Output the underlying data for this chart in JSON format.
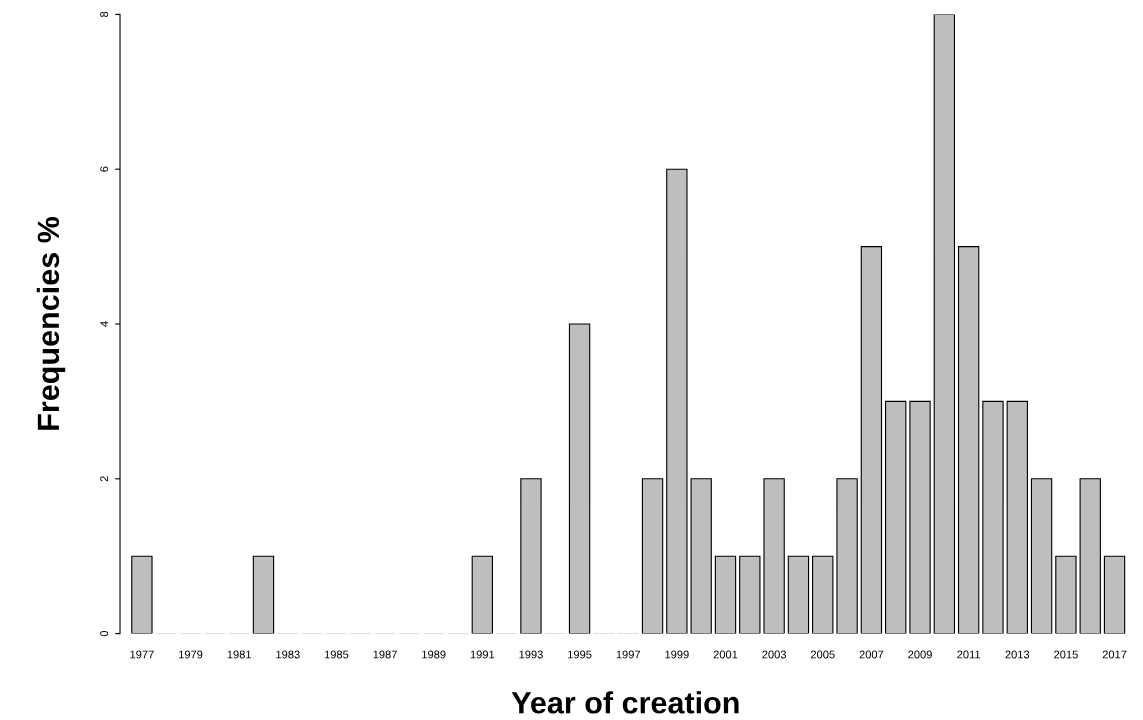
{
  "chart_data": {
    "type": "bar",
    "xlabel": "Year of creation",
    "ylabel": "Frequencies %",
    "categories": [
      "1977",
      null,
      "1979",
      null,
      "1981",
      null,
      "1983",
      null,
      "1985",
      null,
      "1987",
      null,
      "1989",
      null,
      "1991",
      null,
      "1993",
      null,
      "1995",
      null,
      "1997",
      null,
      "1999",
      null,
      "2001",
      null,
      "2003",
      null,
      "2005",
      null,
      "2007",
      null,
      "2009",
      null,
      "2011",
      null,
      "2013",
      null,
      "2015",
      null,
      "2017"
    ],
    "values": [
      1,
      0,
      0,
      0,
      0,
      1,
      0,
      0,
      0,
      0,
      0,
      0,
      0,
      0,
      1,
      0,
      2,
      0,
      4,
      0,
      0,
      2,
      6,
      2,
      1,
      1,
      2,
      1,
      1,
      2,
      5,
      3,
      3,
      8,
      5,
      3,
      3,
      2,
      1,
      2,
      1
    ],
    "color": "#bebebe",
    "ylim": [
      0,
      8
    ],
    "yticks": [
      0,
      2,
      4,
      6,
      8
    ],
    "grid": false,
    "legend": false
  }
}
